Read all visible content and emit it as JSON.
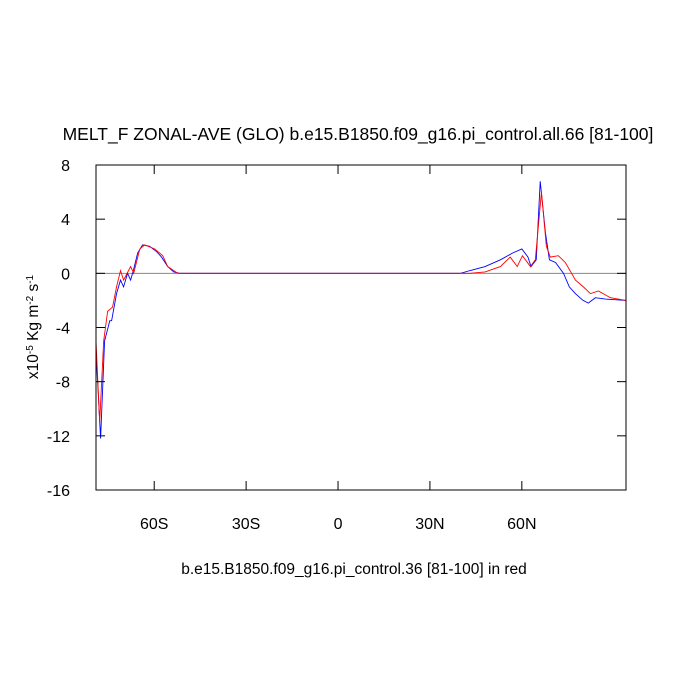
{
  "chart_data": {
    "type": "line",
    "title": "MELT_F ZONAL-AVE (GLO) b.e15.B1850.f09_g16.pi_control.all.66 [81-100]",
    "x_label": "b.e15.B1850.f09_g16.pi_control.36 [81-100] in red",
    "y_label_parts": [
      "x10",
      "-5",
      " Kg m",
      "-2",
      " s",
      "-1"
    ],
    "xlim": [
      -79,
      94
    ],
    "xticks": [
      {
        "value": -60,
        "label": "60S"
      },
      {
        "value": -30,
        "label": "30S"
      },
      0,
      {
        "value": 30,
        "label": "30N"
      },
      {
        "value": 60,
        "label": "60N"
      }
    ],
    "ylim": [
      -16,
      8
    ],
    "yticks": [
      -16,
      -12,
      -8,
      -4,
      0,
      4,
      8
    ],
    "reference_line": 0,
    "series": [
      {
        "color": "#0000ff",
        "x": [
          -79,
          -77.5,
          -76.2,
          -74.5,
          -73.9,
          -72.3,
          -71,
          -70,
          -68.7,
          -67.7,
          -66.7,
          -65.4,
          -63.8,
          -61.5,
          -59.2,
          -57.6,
          -55.6,
          -53.6,
          -51.7,
          40,
          43,
          48,
          53,
          57,
          60,
          62,
          63,
          64.7,
          66,
          67.7,
          69,
          71,
          73.6,
          75.5,
          77.5,
          80,
          81.7,
          84,
          87.3,
          94
        ],
        "values": [
          -5.7,
          -12.2,
          -5,
          -3.5,
          -3.5,
          -1.5,
          -0.5,
          -1,
          0,
          -0.5,
          0.3,
          1.5,
          2.1,
          2,
          1.6,
          1.2,
          0.5,
          0.1,
          0,
          0,
          0.2,
          0.5,
          1,
          1.5,
          1.8,
          1.2,
          0.5,
          1,
          6.8,
          3,
          1,
          0.8,
          0,
          -1,
          -1.5,
          -2,
          -2.2,
          -1.8,
          -1.9,
          -2
        ]
      },
      {
        "color": "#ff0000",
        "x": [
          -79,
          -77.8,
          -76.5,
          -75.2,
          -73.6,
          -72.3,
          -71,
          -70,
          -67.7,
          -66.7,
          -64.7,
          -63.1,
          -59.8,
          -57.2,
          -55.6,
          -52.3,
          43,
          48,
          53,
          56.2,
          58.5,
          60.2,
          62.8,
          64.4,
          66.4,
          68,
          69.3,
          71.9,
          74.2,
          77.5,
          80.1,
          82.4,
          85,
          88.9,
          94
        ],
        "values": [
          -5,
          -11,
          -5,
          -2.8,
          -2.5,
          -1,
          0.2,
          -0.5,
          0.5,
          0,
          1.8,
          2.1,
          1.8,
          1.3,
          0.5,
          0,
          0,
          0.1,
          0.5,
          1.2,
          0.5,
          1.3,
          0.5,
          1,
          6,
          2,
          1.2,
          1.3,
          0.8,
          -0.5,
          -1,
          -1.5,
          -1.3,
          -1.8,
          -2
        ]
      }
    ]
  }
}
